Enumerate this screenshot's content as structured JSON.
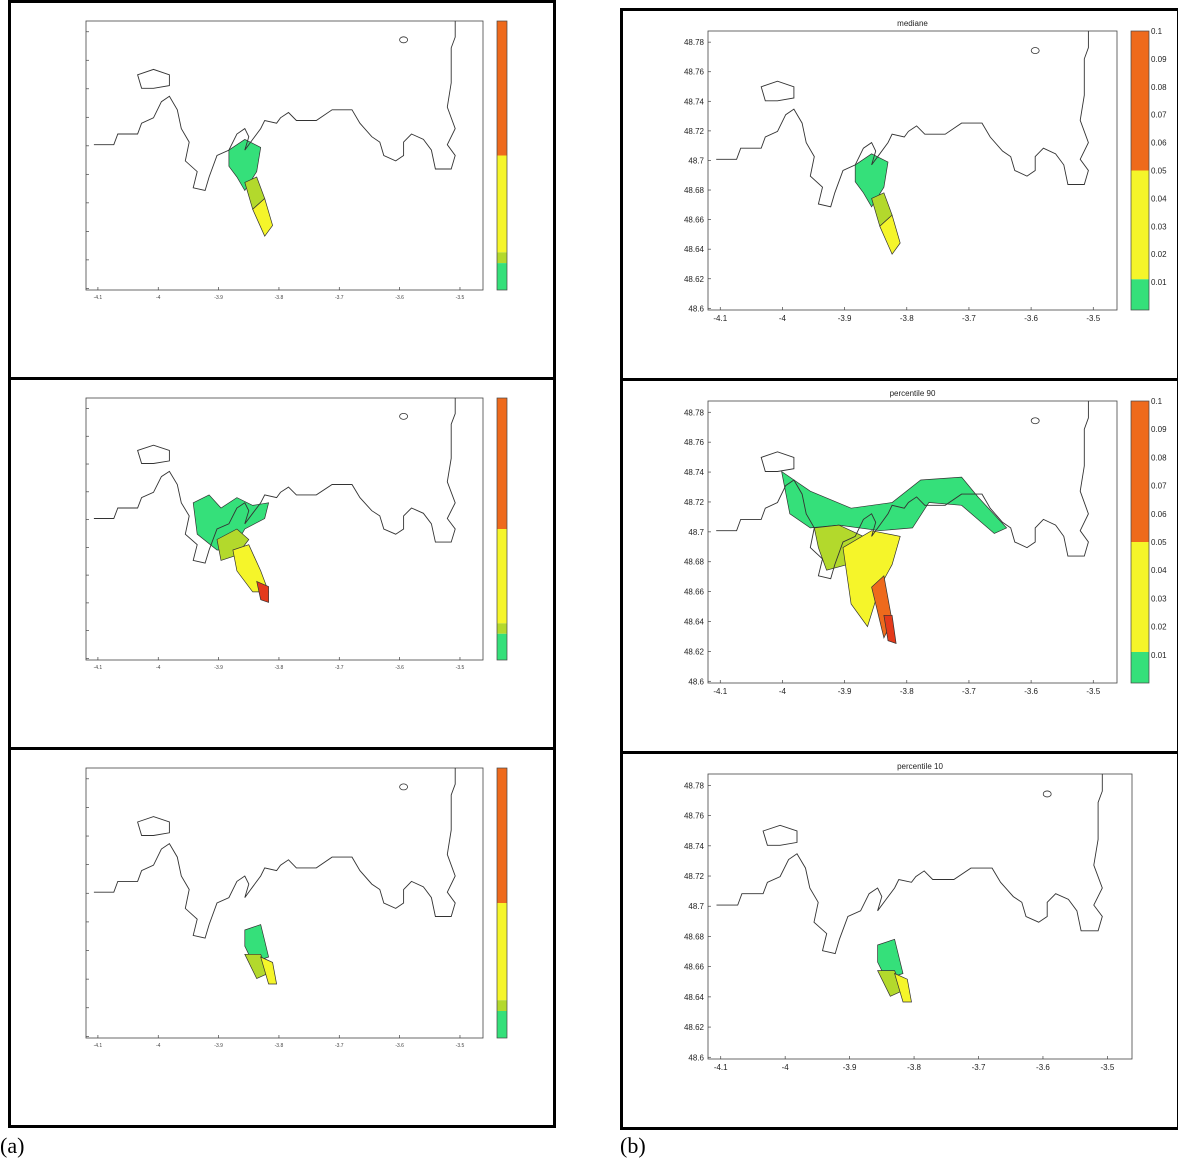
{
  "figure": {
    "caption_a": "(a)",
    "caption_b": "(b)"
  },
  "chart_data": [
    {
      "type": "heatmap",
      "panel": "a-top",
      "title": "",
      "xticks": [
        "-4.1",
        "-4",
        "-3.9",
        "-3.8",
        "-3.7",
        "-3.6",
        "-3.5"
      ],
      "yticks": [],
      "colorbar": {
        "ticks": [],
        "colors": [
          "#ee6a1c",
          "#f5f52a",
          "#b3d92c",
          "#35e07a"
        ]
      }
    },
    {
      "type": "heatmap",
      "panel": "a-middle",
      "title": "",
      "xticks": [
        "-4.1",
        "-4",
        "-3.9",
        "-3.8",
        "-3.7",
        "-3.6",
        "-3.5"
      ],
      "yticks": [],
      "colorbar": {
        "ticks": [],
        "colors": [
          "#ee6a1c",
          "#f5f52a",
          "#b3d92c",
          "#35e07a"
        ]
      }
    },
    {
      "type": "heatmap",
      "panel": "a-bottom",
      "title": "",
      "xticks": [
        "-4.1",
        "-4",
        "-3.9",
        "-3.8",
        "-3.7",
        "-3.6",
        "-3.5"
      ],
      "yticks": [],
      "colorbar": {
        "ticks": [],
        "colors": [
          "#ee6a1c",
          "#f5f52a",
          "#b3d92c",
          "#35e07a"
        ]
      }
    },
    {
      "type": "heatmap",
      "panel": "b-top",
      "title": "mediane",
      "xticks": [
        "-4.1",
        "-4",
        "-3.9",
        "-3.8",
        "-3.7",
        "-3.6",
        "-3.5"
      ],
      "yticks": [
        "48.78",
        "48.76",
        "48.74",
        "48.72",
        "48.7",
        "48.68",
        "48.66",
        "48.64",
        "48.62",
        "48.6"
      ],
      "colorbar": {
        "ticks": [
          "0.1",
          "0.09",
          "0.08",
          "0.07",
          "0.06",
          "0.05",
          "0.04",
          "0.03",
          "0.02",
          "0.01"
        ],
        "colors": [
          "#ee6a1c",
          "#f5f52a",
          "#35e07a"
        ]
      }
    },
    {
      "type": "heatmap",
      "panel": "b-middle",
      "title": "percentile 90",
      "xticks": [
        "-4.1",
        "-4",
        "-3.9",
        "-3.8",
        "-3.7",
        "-3.6",
        "-3.5"
      ],
      "yticks": [
        "48.78",
        "48.76",
        "48.74",
        "48.72",
        "48.7",
        "48.68",
        "48.66",
        "48.64",
        "48.62",
        "48.6"
      ],
      "colorbar": {
        "ticks": [
          "0.1",
          "0.09",
          "0.08",
          "0.07",
          "0.06",
          "0.05",
          "0.04",
          "0.03",
          "0.02",
          "0.01"
        ],
        "colors": [
          "#ee6a1c",
          "#f5f52a",
          "#35e07a"
        ]
      }
    },
    {
      "type": "heatmap",
      "panel": "b-bottom",
      "title": "percentile 10",
      "xticks": [
        "-4.1",
        "-4",
        "-3.9",
        "-3.8",
        "-3.7",
        "-3.6",
        "-3.5"
      ],
      "yticks": [
        "48.78",
        "48.76",
        "48.74",
        "48.72",
        "48.7",
        "48.68",
        "48.66",
        "48.64",
        "48.62",
        "48.6"
      ],
      "colorbar": null
    }
  ]
}
